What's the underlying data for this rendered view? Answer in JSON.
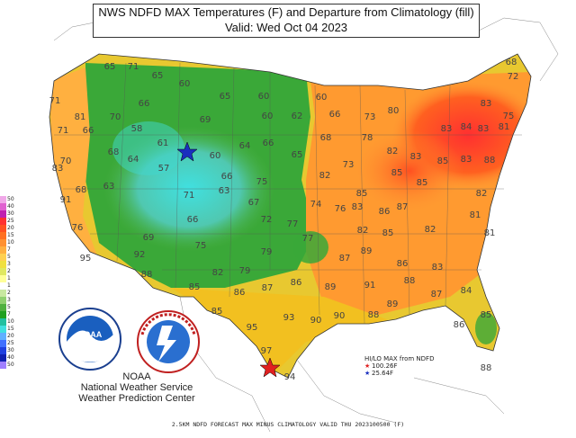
{
  "title": {
    "line1": "NWS NDFD MAX Temperatures (F) and Departure from Climatology (fill)",
    "line2": "Valid: Wed Oct 04 2023"
  },
  "footer": "2.5KM NDFD FORECAST MAX MINUS CLIMATOLOGY VALID THU 2023100500 (F)",
  "credit": {
    "line1": "NOAA",
    "line2": "National Weather Service",
    "line3": "Weather Prediction Center"
  },
  "hilo": {
    "heading": "HI/LO MAX from NDFD",
    "max_label": "100.26F",
    "min_label": "25.64F",
    "max_star_color": "#e02020",
    "min_star_color": "#1a2fbf"
  },
  "legend": {
    "labels": [
      "50",
      "40",
      "30",
      "25",
      "20",
      "15",
      "10",
      "7",
      "5",
      "3",
      "2",
      "1",
      "1",
      "2",
      "3",
      "5",
      "7",
      "10",
      "15",
      "20",
      "25",
      "30",
      "40",
      "50"
    ],
    "colors": [
      "#f0a8e8",
      "#e060d0",
      "#c020b0",
      "#ff3030",
      "#ff5020",
      "#ff7020",
      "#ff9030",
      "#ffb040",
      "#ffd050",
      "#f0e040",
      "#e0e860",
      "#ffff99",
      "#ffffff",
      "#c8e8a0",
      "#90d070",
      "#50b040",
      "#20a020",
      "#20c0a0",
      "#40e0e0",
      "#60b0ff",
      "#4070ff",
      "#2040e0",
      "#1020b0",
      "#a080ff"
    ]
  },
  "temps": [
    {
      "v": "65"
    },
    {
      "v": "71"
    },
    {
      "v": "65"
    },
    {
      "v": "60"
    },
    {
      "v": "65"
    },
    {
      "v": "60"
    },
    {
      "v": "60"
    },
    {
      "v": "68"
    },
    {
      "v": "72"
    },
    {
      "v": "71"
    },
    {
      "v": "81"
    },
    {
      "v": "70"
    },
    {
      "v": "66"
    },
    {
      "v": "69"
    },
    {
      "v": "60"
    },
    {
      "v": "62"
    },
    {
      "v": "66"
    },
    {
      "v": "73"
    },
    {
      "v": "80"
    },
    {
      "v": "83"
    },
    {
      "v": "75"
    },
    {
      "v": "71"
    },
    {
      "v": "66"
    },
    {
      "v": "58"
    },
    {
      "v": "61"
    },
    {
      "v": "64"
    },
    {
      "v": "66"
    },
    {
      "v": "68"
    },
    {
      "v": "78"
    },
    {
      "v": "83"
    },
    {
      "v": "84"
    },
    {
      "v": "83"
    },
    {
      "v": "81"
    },
    {
      "v": "83"
    },
    {
      "v": "70"
    },
    {
      "v": "68"
    },
    {
      "v": "64"
    },
    {
      "v": "60"
    },
    {
      "v": "65"
    },
    {
      "v": "73"
    },
    {
      "v": "82"
    },
    {
      "v": "83"
    },
    {
      "v": "85"
    },
    {
      "v": "83"
    },
    {
      "v": "88"
    },
    {
      "v": "68"
    },
    {
      "v": "63"
    },
    {
      "v": "57"
    },
    {
      "v": "66"
    },
    {
      "v": "75"
    },
    {
      "v": "82"
    },
    {
      "v": "85"
    },
    {
      "v": "85"
    },
    {
      "v": "85"
    },
    {
      "v": "82"
    },
    {
      "v": "91"
    },
    {
      "v": "71"
    },
    {
      "v": "63"
    },
    {
      "v": "67"
    },
    {
      "v": "74"
    },
    {
      "v": "76"
    },
    {
      "v": "83"
    },
    {
      "v": "86"
    },
    {
      "v": "87"
    },
    {
      "v": "81"
    },
    {
      "v": "76"
    },
    {
      "v": "69"
    },
    {
      "v": "66"
    },
    {
      "v": "72"
    },
    {
      "v": "77"
    },
    {
      "v": "82"
    },
    {
      "v": "85"
    },
    {
      "v": "82"
    },
    {
      "v": "81"
    },
    {
      "v": "95"
    },
    {
      "v": "92"
    },
    {
      "v": "75"
    },
    {
      "v": "79"
    },
    {
      "v": "77"
    },
    {
      "v": "87"
    },
    {
      "v": "89"
    },
    {
      "v": "86"
    },
    {
      "v": "83"
    },
    {
      "v": "88"
    },
    {
      "v": "82"
    },
    {
      "v": "79"
    },
    {
      "v": "85"
    },
    {
      "v": "86"
    },
    {
      "v": "87"
    },
    {
      "v": "86"
    },
    {
      "v": "89"
    },
    {
      "v": "91"
    },
    {
      "v": "88"
    },
    {
      "v": "87"
    },
    {
      "v": "84"
    },
    {
      "v": "85"
    },
    {
      "v": "95"
    },
    {
      "v": "93"
    },
    {
      "v": "90"
    },
    {
      "v": "90"
    },
    {
      "v": "88"
    },
    {
      "v": "89"
    },
    {
      "v": "85"
    },
    {
      "v": "86"
    },
    {
      "v": "97"
    },
    {
      "v": "94"
    },
    {
      "v": "88"
    }
  ]
}
